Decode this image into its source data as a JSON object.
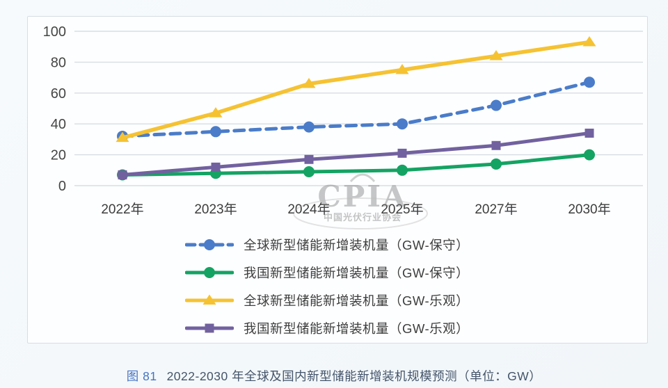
{
  "chart_data": {
    "type": "line",
    "title": "",
    "categories": [
      "2022年",
      "2023年",
      "2024年",
      "2025年",
      "2027年",
      "2030年"
    ],
    "series": [
      {
        "name": "全球新型储能新增装机量（GW-保守）",
        "values": [
          32,
          35,
          38,
          40,
          52,
          67
        ],
        "color": "#4a7cc9",
        "dash": true,
        "marker": "circle"
      },
      {
        "name": "我国新型储能新增装机量（GW-保守）",
        "values": [
          7,
          8,
          9,
          10,
          14,
          20
        ],
        "color": "#14a363",
        "dash": false,
        "marker": "circle"
      },
      {
        "name": "全球新型储能新增装机量（GW-乐观）",
        "values": [
          31,
          47,
          66,
          75,
          84,
          93
        ],
        "color": "#f5c232",
        "dash": false,
        "marker": "triangle"
      },
      {
        "name": "我国新型储能新增装机量（GW-乐观）",
        "values": [
          7,
          12,
          17,
          21,
          26,
          34
        ],
        "color": "#72619f",
        "dash": false,
        "marker": "square"
      }
    ],
    "xlabel": "",
    "ylabel": "",
    "ylim": [
      0,
      100
    ],
    "yticks": [
      0,
      20,
      40,
      60,
      80,
      100
    ],
    "grid": true,
    "legend_position": "bottom-center",
    "gridline_color": "#d8dde2",
    "tick_label_color": "#454545"
  },
  "watermark": {
    "text": "CPIA",
    "subtext": "中国光伏行业协会"
  },
  "caption": {
    "prefix": "图 81",
    "text": "2022-2030 年全球及国内新型储能新增装机规模预测（单位：GW）"
  }
}
